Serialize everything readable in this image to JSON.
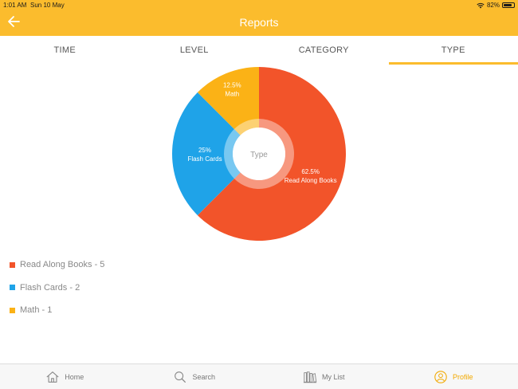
{
  "status_bar": {
    "time": "1:01 AM",
    "date": "Sun 10 May",
    "battery": "82%"
  },
  "header": {
    "title": "Reports"
  },
  "tabs": [
    {
      "label": "TIME",
      "active": false
    },
    {
      "label": "LEVEL",
      "active": false
    },
    {
      "label": "CATEGORY",
      "active": false
    },
    {
      "label": "TYPE",
      "active": true
    }
  ],
  "chart_data": {
    "type": "pie",
    "center_label": "Type",
    "slices": [
      {
        "label": "Read Along Books",
        "percent_label": "62.5%",
        "value": 5,
        "color": "#f2542a"
      },
      {
        "label": "Flash Cards",
        "percent_label": "25%",
        "value": 2,
        "color": "#1fa3e8"
      },
      {
        "label": "Math",
        "percent_label": "12.5%",
        "value": 1,
        "color": "#fbb216"
      }
    ]
  },
  "legend": [
    {
      "text": "Read Along Books - 5",
      "color": "#f2542a"
    },
    {
      "text": "Flash Cards - 2",
      "color": "#1fa3e8"
    },
    {
      "text": "Math - 1",
      "color": "#fbb216"
    }
  ],
  "nav": [
    {
      "label": "Home",
      "icon": "home-icon",
      "active": false
    },
    {
      "label": "Search",
      "icon": "search-icon",
      "active": false
    },
    {
      "label": "My List",
      "icon": "books-icon",
      "active": false
    },
    {
      "label": "Profile",
      "icon": "profile-icon",
      "active": true
    }
  ],
  "colors": {
    "accent": "#fbbc2d",
    "active_nav": "#f2a900"
  }
}
